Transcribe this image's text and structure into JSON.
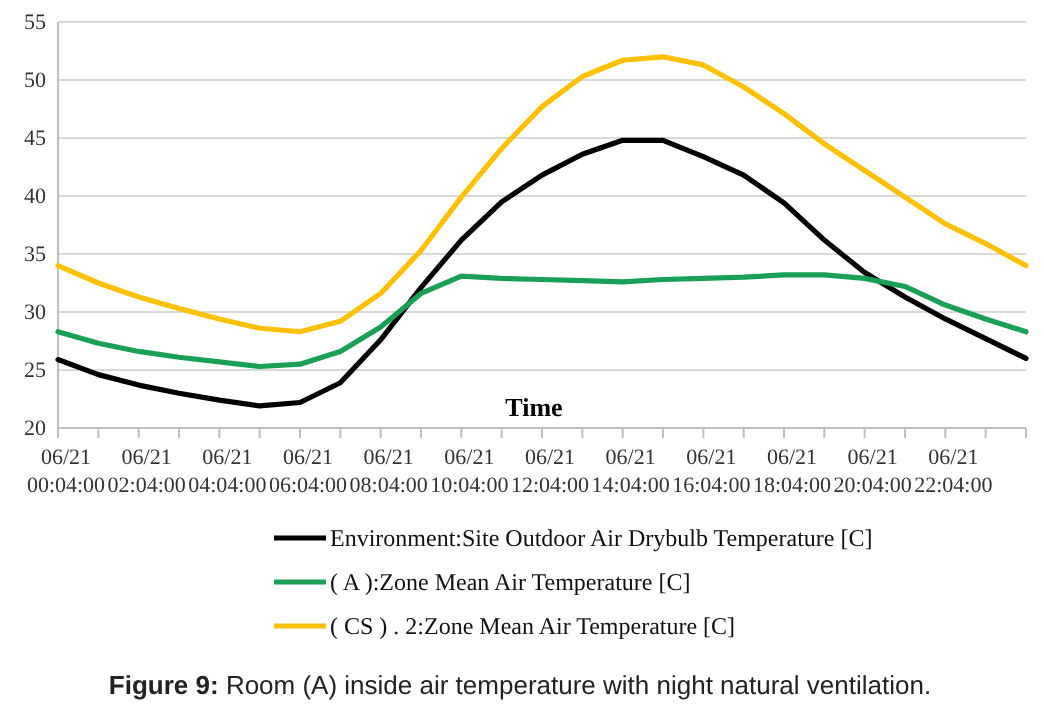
{
  "chart_data": {
    "type": "line",
    "xlabel": "Time",
    "categories": [
      "06/21 00:04:00",
      null,
      "06/21 02:04:00",
      null,
      "06/21 04:04:00",
      null,
      "06/21 06:04:00",
      null,
      "06/21 08:04:00",
      null,
      "06/21 10:04:00",
      null,
      "06/21 12:04:00",
      null,
      "06/21 14:04:00",
      null,
      "06/21 16:04:00",
      null,
      "06/21 18:04:00",
      null,
      "06/21 20:04:00",
      null,
      "06/21 22:04:00",
      null,
      null
    ],
    "series": [
      {
        "name": "Environment:Site Outdoor Air Drybulb Temperature [C]",
        "color": "#000000",
        "values": [
          25.9,
          24.6,
          23.7,
          23.0,
          22.4,
          21.9,
          22.2,
          23.9,
          27.6,
          32.1,
          36.2,
          39.5,
          41.8,
          43.6,
          44.8,
          44.8,
          43.4,
          41.8,
          39.4,
          36.2,
          33.4,
          31.3,
          29.4,
          27.7,
          26.0
        ]
      },
      {
        "name": "( A ):Zone Mean Air Temperature [C]",
        "color": "#1aa056",
        "values": [
          28.3,
          27.3,
          26.6,
          26.1,
          25.7,
          25.3,
          25.5,
          26.6,
          28.7,
          31.6,
          33.1,
          32.9,
          32.8,
          32.7,
          32.6,
          32.8,
          32.9,
          33.0,
          33.2,
          33.2,
          32.9,
          32.2,
          30.6,
          29.4,
          28.3
        ]
      },
      {
        "name": "( CS ) . 2:Zone Mean Air Temperature [C]",
        "color": "#ffc000",
        "values": [
          34.0,
          32.5,
          31.3,
          30.3,
          29.4,
          28.6,
          28.3,
          29.2,
          31.6,
          35.3,
          39.9,
          44.1,
          47.7,
          50.3,
          51.7,
          52.0,
          51.3,
          49.4,
          47.1,
          44.5,
          42.2,
          39.9,
          37.6,
          35.9,
          34.0
        ]
      }
    ],
    "ylim": [
      20,
      55
    ],
    "yticks": [
      20,
      25,
      30,
      35,
      40,
      45,
      50,
      55
    ],
    "grid": "y",
    "legend": "bottom",
    "annotations": [
      "Figure 9: Room (A) inside air temperature with night natural ventilation."
    ]
  }
}
